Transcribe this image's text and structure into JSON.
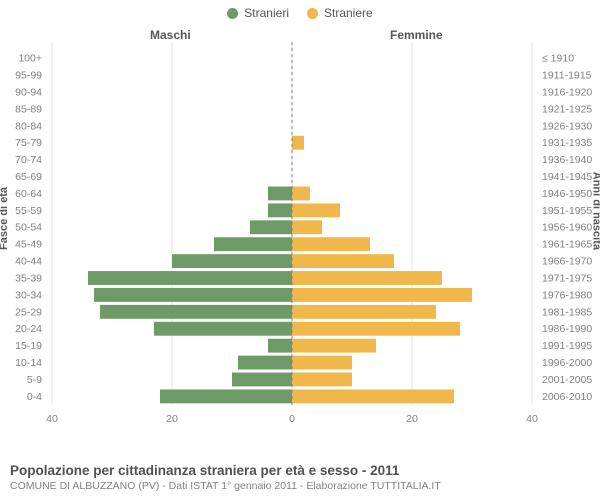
{
  "legend": {
    "male": {
      "label": "Stranieri",
      "color": "#6e9a68"
    },
    "female": {
      "label": "Straniere",
      "color": "#f0b84a"
    }
  },
  "column_headers": {
    "left": "Maschi",
    "right": "Femmine"
  },
  "axis_labels": {
    "left": "Fasce di età",
    "right": "Anni di nascita"
  },
  "footer": {
    "title": "Popolazione per cittadinanza straniera per età e sesso - 2011",
    "subtitle": "COMUNE DI ALBUZZANO (PV) - Dati ISTAT 1° gennaio 2011 - Elaborazione TUTTITALIA.IT"
  },
  "chart": {
    "type": "population-pyramid",
    "background_color": "#ffffff",
    "grid_color": "#e6e6e6",
    "center_line_color": "#808080",
    "tick_label_color": "#808080",
    "axis_label_fontsize": 11,
    "tick_fontsize": 10.5,
    "x_max": 40,
    "x_ticks": [
      40,
      20,
      0,
      20,
      40
    ],
    "x_tick_labels": [
      "40",
      "20",
      "0",
      "20",
      "40"
    ],
    "bar_gap_ratio": 0.18,
    "rows": [
      {
        "age": "0-4",
        "birth": "2006-2010",
        "m": 22,
        "f": 27
      },
      {
        "age": "5-9",
        "birth": "2001-2005",
        "m": 10,
        "f": 10
      },
      {
        "age": "10-14",
        "birth": "1996-2000",
        "m": 9,
        "f": 10
      },
      {
        "age": "15-19",
        "birth": "1991-1995",
        "m": 4,
        "f": 14
      },
      {
        "age": "20-24",
        "birth": "1986-1990",
        "m": 23,
        "f": 28
      },
      {
        "age": "25-29",
        "birth": "1981-1985",
        "m": 32,
        "f": 24
      },
      {
        "age": "30-34",
        "birth": "1976-1980",
        "m": 33,
        "f": 30
      },
      {
        "age": "35-39",
        "birth": "1971-1975",
        "m": 34,
        "f": 25
      },
      {
        "age": "40-44",
        "birth": "1966-1970",
        "m": 20,
        "f": 17
      },
      {
        "age": "45-49",
        "birth": "1961-1965",
        "m": 13,
        "f": 13
      },
      {
        "age": "50-54",
        "birth": "1956-1960",
        "m": 7,
        "f": 5
      },
      {
        "age": "55-59",
        "birth": "1951-1955",
        "m": 4,
        "f": 8
      },
      {
        "age": "60-64",
        "birth": "1946-1950",
        "m": 4,
        "f": 3
      },
      {
        "age": "65-69",
        "birth": "1941-1945",
        "m": 0,
        "f": 0
      },
      {
        "age": "70-74",
        "birth": "1936-1940",
        "m": 0,
        "f": 0
      },
      {
        "age": "75-79",
        "birth": "1931-1935",
        "m": 0,
        "f": 2
      },
      {
        "age": "80-84",
        "birth": "1926-1930",
        "m": 0,
        "f": 0
      },
      {
        "age": "85-89",
        "birth": "1921-1925",
        "m": 0,
        "f": 0
      },
      {
        "age": "90-94",
        "birth": "1916-1920",
        "m": 0,
        "f": 0
      },
      {
        "age": "95-99",
        "birth": "1911-1915",
        "m": 0,
        "f": 0
      },
      {
        "age": "100+",
        "birth": "≤ 1910",
        "m": 0,
        "f": 0
      }
    ]
  }
}
